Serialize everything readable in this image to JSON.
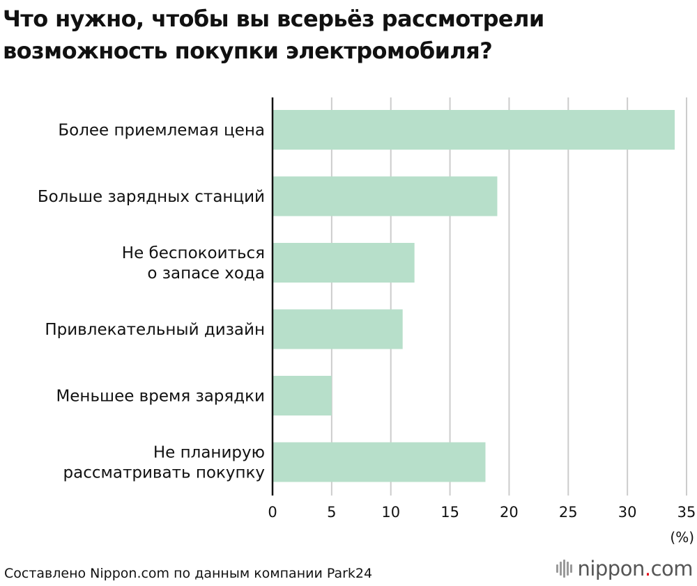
{
  "title_lines": [
    "Что нужно, чтобы вы всерьёз рассмотрели",
    "возможность покупки электромобиля?"
  ],
  "source": "Составлено Nippon.com по данным компании Park24",
  "logo": {
    "name": "nippon",
    "dot": ".",
    "suffix": "com"
  },
  "colors": {
    "bar": "#b7dfca",
    "grid": "#cccccc",
    "axis": "#111111"
  },
  "chart_data": {
    "type": "bar",
    "orientation": "horizontal",
    "categories": [
      [
        "Более приемлемая цена"
      ],
      [
        "Больше зарядных станций"
      ],
      [
        "Не беспокоиться",
        "о запасе хода"
      ],
      [
        "Привлекательный дизайн"
      ],
      [
        "Меньшее время зарядки"
      ],
      [
        "Не планирую",
        "рассматривать покупку"
      ]
    ],
    "values": [
      34,
      19,
      12,
      11,
      5,
      18
    ],
    "xlim": [
      0,
      35
    ],
    "xticks": [
      "0",
      "5",
      "10",
      "15",
      "20",
      "25",
      "30",
      "35"
    ],
    "unit_label": "(%)",
    "grid": true
  }
}
